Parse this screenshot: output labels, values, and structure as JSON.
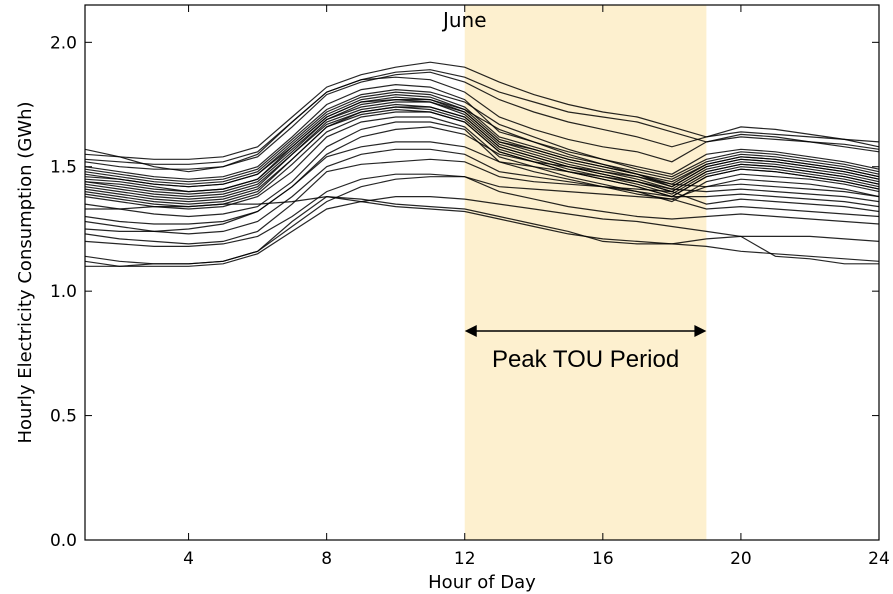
{
  "chart_data": {
    "type": "line",
    "title": "June",
    "xlabel": "Hour of Day",
    "ylabel": "Hourly Electricity Consumption (GWh)",
    "xlim": [
      1,
      24
    ],
    "ylim": [
      0.0,
      2.15
    ],
    "xticks": [
      4,
      8,
      12,
      16,
      20,
      24
    ],
    "yticks": [
      0.0,
      0.5,
      1.0,
      1.5,
      2.0
    ],
    "ytick_labels": [
      "0.0",
      "0.5",
      "1.0",
      "1.5",
      "2.0"
    ],
    "grid": false,
    "highlight_band": {
      "x_start": 12,
      "x_end": 19,
      "color": "#fdf0cf"
    },
    "annotation": {
      "text": "Peak TOU Period",
      "x_start": 12,
      "x_end": 19,
      "y": 0.84
    },
    "x": [
      1,
      2,
      3,
      4,
      5,
      6,
      7,
      8,
      9,
      10,
      11,
      12,
      13,
      14,
      15,
      16,
      17,
      18,
      19,
      20,
      21,
      22,
      23,
      24
    ],
    "series": [
      {
        "values": [
          1.45,
          1.44,
          1.42,
          1.4,
          1.41,
          1.45,
          1.58,
          1.7,
          1.76,
          1.78,
          1.77,
          1.72,
          1.6,
          1.56,
          1.52,
          1.49,
          1.46,
          1.42,
          1.5,
          1.53,
          1.52,
          1.5,
          1.48,
          1.45
        ]
      },
      {
        "values": [
          1.42,
          1.4,
          1.38,
          1.37,
          1.38,
          1.42,
          1.55,
          1.68,
          1.73,
          1.75,
          1.74,
          1.7,
          1.58,
          1.54,
          1.5,
          1.47,
          1.44,
          1.4,
          1.48,
          1.51,
          1.5,
          1.48,
          1.46,
          1.43
        ]
      },
      {
        "values": [
          1.48,
          1.46,
          1.44,
          1.43,
          1.44,
          1.48,
          1.6,
          1.72,
          1.78,
          1.8,
          1.79,
          1.74,
          1.62,
          1.58,
          1.54,
          1.51,
          1.48,
          1.45,
          1.52,
          1.55,
          1.54,
          1.52,
          1.5,
          1.47
        ]
      },
      {
        "values": [
          1.4,
          1.38,
          1.36,
          1.35,
          1.36,
          1.4,
          1.53,
          1.66,
          1.71,
          1.73,
          1.72,
          1.68,
          1.56,
          1.52,
          1.48,
          1.45,
          1.42,
          1.38,
          1.46,
          1.49,
          1.48,
          1.46,
          1.44,
          1.41
        ]
      },
      {
        "values": [
          1.5,
          1.48,
          1.46,
          1.45,
          1.46,
          1.5,
          1.62,
          1.75,
          1.81,
          1.83,
          1.82,
          1.77,
          1.64,
          1.6,
          1.56,
          1.53,
          1.5,
          1.47,
          1.55,
          1.57,
          1.56,
          1.54,
          1.52,
          1.49
        ]
      },
      {
        "values": [
          1.44,
          1.42,
          1.4,
          1.39,
          1.4,
          1.44,
          1.56,
          1.69,
          1.74,
          1.76,
          1.76,
          1.71,
          1.59,
          1.55,
          1.51,
          1.48,
          1.45,
          1.41,
          1.49,
          1.52,
          1.51,
          1.49,
          1.47,
          1.44
        ]
      },
      {
        "values": [
          1.55,
          1.54,
          1.53,
          1.53,
          1.54,
          1.58,
          1.7,
          1.82,
          1.87,
          1.9,
          1.92,
          1.9,
          1.84,
          1.79,
          1.75,
          1.72,
          1.7,
          1.66,
          1.62,
          1.64,
          1.63,
          1.62,
          1.61,
          1.6
        ]
      },
      {
        "values": [
          1.52,
          1.5,
          1.49,
          1.49,
          1.5,
          1.54,
          1.66,
          1.79,
          1.84,
          1.87,
          1.88,
          1.84,
          1.77,
          1.72,
          1.68,
          1.65,
          1.62,
          1.58,
          1.62,
          1.66,
          1.65,
          1.63,
          1.61,
          1.58
        ]
      },
      {
        "values": [
          1.57,
          1.54,
          1.5,
          1.48,
          1.5,
          1.55,
          1.68,
          1.8,
          1.85,
          1.86,
          1.85,
          1.8,
          1.7,
          1.65,
          1.61,
          1.58,
          1.56,
          1.52,
          1.6,
          1.63,
          1.62,
          1.6,
          1.58,
          1.56
        ]
      },
      {
        "values": [
          1.38,
          1.36,
          1.34,
          1.33,
          1.34,
          1.38,
          1.48,
          1.62,
          1.68,
          1.7,
          1.7,
          1.66,
          1.54,
          1.5,
          1.46,
          1.43,
          1.4,
          1.36,
          1.44,
          1.47,
          1.46,
          1.45,
          1.43,
          1.4
        ]
      },
      {
        "values": [
          1.35,
          1.33,
          1.31,
          1.3,
          1.31,
          1.34,
          1.44,
          1.58,
          1.65,
          1.68,
          1.68,
          1.65,
          1.52,
          1.48,
          1.45,
          1.42,
          1.39,
          1.37,
          1.42,
          1.45,
          1.44,
          1.43,
          1.41,
          1.38
        ]
      },
      {
        "values": [
          1.43,
          1.41,
          1.39,
          1.38,
          1.39,
          1.43,
          1.55,
          1.67,
          1.72,
          1.74,
          1.73,
          1.69,
          1.57,
          1.53,
          1.49,
          1.46,
          1.43,
          1.39,
          1.47,
          1.5,
          1.49,
          1.47,
          1.45,
          1.42
        ]
      },
      {
        "values": [
          1.3,
          1.28,
          1.27,
          1.27,
          1.28,
          1.32,
          1.42,
          1.55,
          1.62,
          1.65,
          1.66,
          1.63,
          1.55,
          1.52,
          1.5,
          1.48,
          1.46,
          1.43,
          1.42,
          1.43,
          1.42,
          1.41,
          1.4,
          1.38
        ]
      },
      {
        "values": [
          1.25,
          1.24,
          1.24,
          1.25,
          1.27,
          1.32,
          1.42,
          1.54,
          1.58,
          1.6,
          1.6,
          1.58,
          1.52,
          1.5,
          1.48,
          1.46,
          1.44,
          1.41,
          1.4,
          1.41,
          1.4,
          1.39,
          1.38,
          1.36
        ]
      },
      {
        "values": [
          1.28,
          1.26,
          1.24,
          1.23,
          1.24,
          1.28,
          1.38,
          1.5,
          1.55,
          1.57,
          1.57,
          1.55,
          1.48,
          1.46,
          1.44,
          1.42,
          1.4,
          1.38,
          1.38,
          1.39,
          1.38,
          1.37,
          1.36,
          1.34
        ]
      },
      {
        "values": [
          1.23,
          1.21,
          1.2,
          1.19,
          1.2,
          1.24,
          1.35,
          1.48,
          1.51,
          1.52,
          1.53,
          1.52,
          1.46,
          1.44,
          1.43,
          1.42,
          1.41,
          1.4,
          1.35,
          1.37,
          1.36,
          1.35,
          1.34,
          1.32
        ]
      },
      {
        "values": [
          1.2,
          1.19,
          1.18,
          1.18,
          1.19,
          1.22,
          1.3,
          1.4,
          1.45,
          1.47,
          1.47,
          1.46,
          1.42,
          1.41,
          1.4,
          1.39,
          1.38,
          1.37,
          1.33,
          1.34,
          1.33,
          1.32,
          1.31,
          1.3
        ]
      },
      {
        "values": [
          1.14,
          1.12,
          1.11,
          1.11,
          1.12,
          1.16,
          1.26,
          1.36,
          1.42,
          1.45,
          1.46,
          1.46,
          1.4,
          1.37,
          1.34,
          1.32,
          1.3,
          1.29,
          1.3,
          1.31,
          1.3,
          1.29,
          1.28,
          1.27
        ]
      },
      {
        "values": [
          1.1,
          1.1,
          1.11,
          1.11,
          1.12,
          1.16,
          1.28,
          1.38,
          1.37,
          1.35,
          1.34,
          1.33,
          1.3,
          1.27,
          1.24,
          1.2,
          1.19,
          1.19,
          1.18,
          1.16,
          1.15,
          1.14,
          1.13,
          1.12
        ]
      },
      {
        "values": [
          1.33,
          1.33,
          1.34,
          1.34,
          1.35,
          1.35,
          1.36,
          1.38,
          1.36,
          1.34,
          1.33,
          1.32,
          1.29,
          1.26,
          1.23,
          1.21,
          1.2,
          1.19,
          1.21,
          1.22,
          1.22,
          1.22,
          1.21,
          1.2
        ]
      },
      {
        "values": [
          1.12,
          1.1,
          1.1,
          1.1,
          1.11,
          1.15,
          1.24,
          1.33,
          1.36,
          1.38,
          1.38,
          1.37,
          1.35,
          1.33,
          1.31,
          1.29,
          1.28,
          1.26,
          1.24,
          1.22,
          1.14,
          1.13,
          1.11,
          1.11
        ]
      },
      {
        "values": [
          1.46,
          1.45,
          1.43,
          1.42,
          1.43,
          1.47,
          1.58,
          1.7,
          1.76,
          1.77,
          1.76,
          1.72,
          1.6,
          1.57,
          1.53,
          1.5,
          1.47,
          1.43,
          1.51,
          1.54,
          1.53,
          1.51,
          1.49,
          1.46
        ]
      },
      {
        "values": [
          1.41,
          1.39,
          1.37,
          1.36,
          1.37,
          1.41,
          1.53,
          1.66,
          1.72,
          1.74,
          1.74,
          1.7,
          1.58,
          1.54,
          1.5,
          1.47,
          1.44,
          1.4,
          1.48,
          1.51,
          1.5,
          1.48,
          1.46,
          1.43
        ]
      },
      {
        "values": [
          1.53,
          1.52,
          1.51,
          1.51,
          1.52,
          1.56,
          1.68,
          1.8,
          1.85,
          1.88,
          1.89,
          1.86,
          1.8,
          1.76,
          1.72,
          1.7,
          1.68,
          1.64,
          1.6,
          1.62,
          1.61,
          1.6,
          1.59,
          1.57
        ]
      },
      {
        "values": [
          1.47,
          1.45,
          1.43,
          1.42,
          1.43,
          1.47,
          1.59,
          1.71,
          1.77,
          1.79,
          1.78,
          1.73,
          1.61,
          1.57,
          1.53,
          1.5,
          1.47,
          1.44,
          1.51,
          1.54,
          1.53,
          1.51,
          1.49,
          1.46
        ]
      },
      {
        "values": [
          1.39,
          1.37,
          1.35,
          1.34,
          1.35,
          1.39,
          1.51,
          1.64,
          1.7,
          1.72,
          1.72,
          1.68,
          1.56,
          1.52,
          1.48,
          1.45,
          1.42,
          1.38,
          1.46,
          1.49,
          1.48,
          1.46,
          1.44,
          1.41
        ]
      },
      {
        "values": [
          1.44,
          1.43,
          1.41,
          1.4,
          1.41,
          1.45,
          1.57,
          1.69,
          1.75,
          1.77,
          1.77,
          1.73,
          1.65,
          1.6,
          1.55,
          1.51,
          1.47,
          1.42,
          1.5,
          1.53,
          1.52,
          1.5,
          1.48,
          1.45
        ]
      },
      {
        "values": [
          1.49,
          1.47,
          1.45,
          1.44,
          1.45,
          1.49,
          1.61,
          1.73,
          1.79,
          1.81,
          1.8,
          1.76,
          1.67,
          1.62,
          1.57,
          1.53,
          1.49,
          1.46,
          1.53,
          1.56,
          1.55,
          1.53,
          1.51,
          1.48
        ]
      }
    ]
  }
}
